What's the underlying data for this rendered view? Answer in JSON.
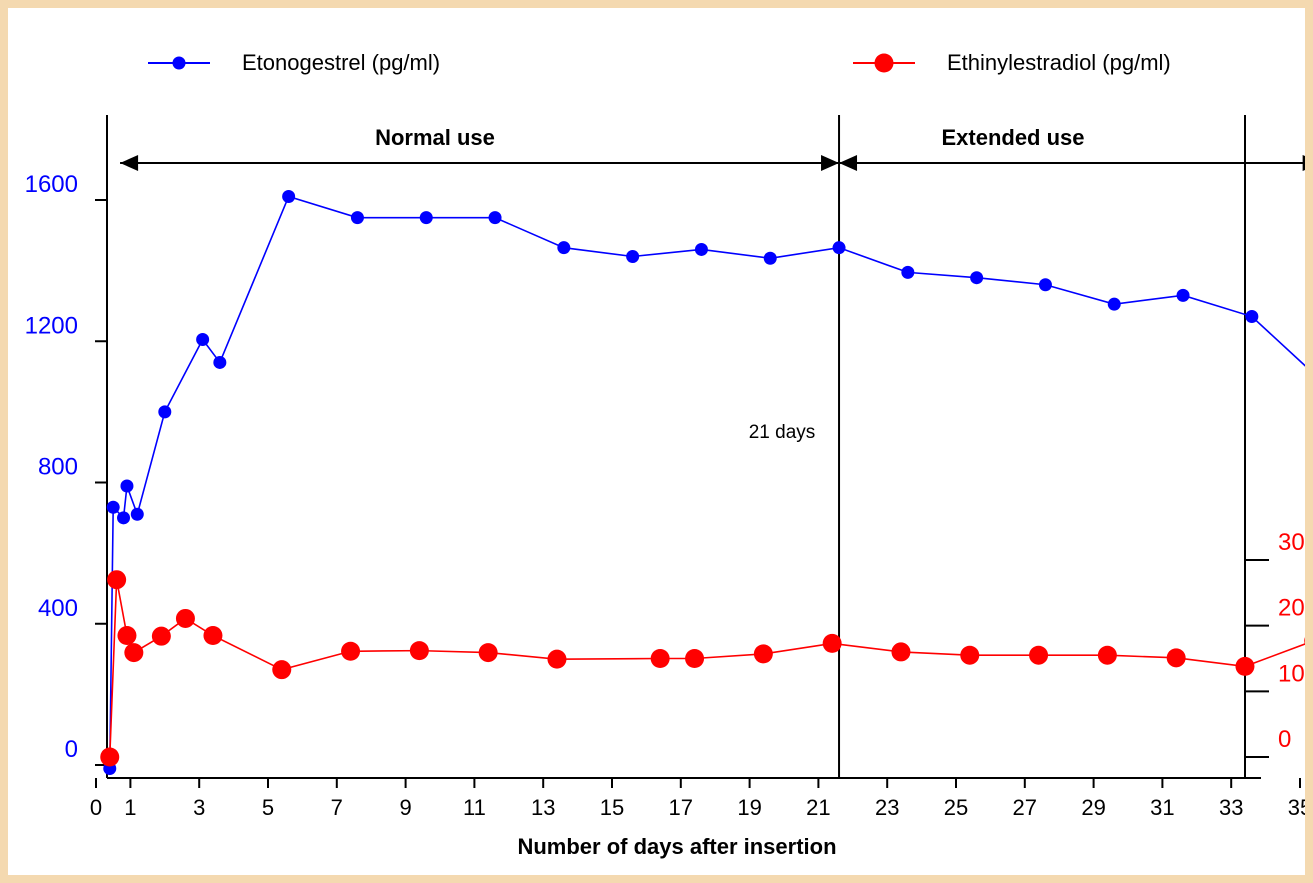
{
  "chart_data": {
    "type": "line",
    "xlabel": "Number of days after insertion",
    "x_ticks": [
      0,
      1,
      3,
      5,
      7,
      9,
      11,
      13,
      15,
      17,
      19,
      21,
      23,
      25,
      27,
      29,
      31,
      33,
      35
    ],
    "xlim": [
      0,
      36
    ],
    "y_left": {
      "ticks": [
        0,
        400,
        800,
        1200,
        1600
      ],
      "lim": [
        0,
        1800
      ],
      "color": "#0000ff"
    },
    "y_right": {
      "ticks": [
        0,
        10,
        20,
        30
      ],
      "lim": [
        0,
        33
      ],
      "color": "#ff0000"
    },
    "series": [
      {
        "name": "Etonogestrel (pg/ml)",
        "axis": "left",
        "color": "#0000ff",
        "x": [
          0.4,
          0.5,
          0.8,
          0.9,
          1.2,
          2.0,
          3.1,
          3.6,
          5.6,
          7.6,
          9.6,
          11.6,
          13.6,
          15.6,
          17.6,
          19.6,
          21.6,
          23.6,
          25.6,
          27.6,
          29.6,
          31.6,
          33.6,
          35.6
        ],
        "y": [
          -10,
          730,
          700,
          790,
          710,
          1000,
          1205,
          1140,
          1610,
          1550,
          1550,
          1550,
          1465,
          1440,
          1460,
          1435,
          1465,
          1395,
          1380,
          1360,
          1305,
          1330,
          1270,
          1090
        ]
      },
      {
        "name": "Ethinylestradiol (pg/ml)",
        "axis": "right",
        "color": "#ff0000",
        "x": [
          0.4,
          0.6,
          0.9,
          1.1,
          1.9,
          2.6,
          3.4,
          5.4,
          7.4,
          9.4,
          11.4,
          13.4,
          16.4,
          17.4,
          19.4,
          21.4,
          23.4,
          25.4,
          27.4,
          29.4,
          31.4,
          33.4,
          35.4
        ],
        "y": [
          0,
          27,
          18.5,
          15.9,
          18.4,
          21.1,
          18.5,
          13.3,
          16.1,
          16.2,
          15.9,
          14.9,
          15.0,
          15.0,
          15.7,
          17.3,
          16.0,
          15.5,
          15.5,
          15.5,
          15.1,
          13.8,
          17.7
        ]
      }
    ],
    "phases": [
      {
        "label": "Normal use",
        "from": 0.7,
        "to": 21.6
      },
      {
        "label": "Extended use",
        "from": 21.6,
        "to": 35.6
      }
    ],
    "annotations": [
      {
        "text": "21 days",
        "x": 21.6
      }
    ]
  }
}
